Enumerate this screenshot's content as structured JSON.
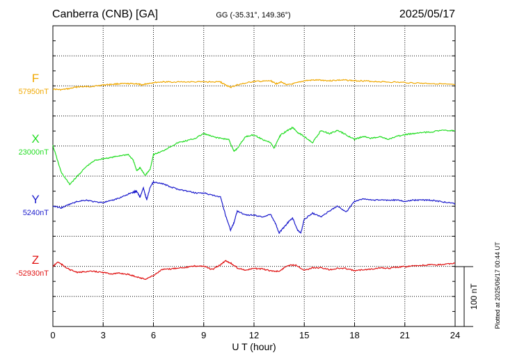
{
  "header": {
    "station": "Canberra (CNB)  [GA]",
    "coords": "GG (-35.31°, 149.36°)",
    "date": "2025/05/17"
  },
  "footer": {
    "plotted_note": "Plotted at 2025/06/17 00:44 UT"
  },
  "chart_data": {
    "type": "line",
    "xlabel": "U T (hour)",
    "xlim": [
      0,
      24
    ],
    "x_ticks": [
      0,
      3,
      6,
      9,
      12,
      15,
      18,
      21,
      24
    ],
    "scale_bar_label": "100 nT",
    "scale_bar_nT": 100,
    "grid": true,
    "series": [
      {
        "name": "F",
        "baseline_label": "57950nT",
        "baseline": 57950,
        "color": "#f0a800",
        "x": [
          0,
          0.5,
          1,
          1.5,
          2,
          2.5,
          3,
          3.5,
          4,
          4.5,
          5,
          5.3,
          5.6,
          6,
          6.5,
          7,
          8,
          9,
          10,
          10.3,
          10.6,
          11,
          11.5,
          12,
          12.5,
          13,
          13.3,
          13.6,
          14,
          14.5,
          15,
          15.5,
          16,
          16.5,
          17,
          17.5,
          18,
          18.5,
          19,
          20,
          21,
          22,
          23,
          24
        ],
        "values": [
          57943,
          57942,
          57944,
          57947,
          57947,
          57948,
          57950,
          57951,
          57952,
          57952,
          57952,
          57950,
          57952,
          57954,
          57955,
          57955,
          57955,
          57955,
          57955,
          57950,
          57946,
          57950,
          57953,
          57956,
          57956,
          57957,
          57952,
          57955,
          57950,
          57953,
          57957,
          57958,
          57958,
          57957,
          57958,
          57958,
          57957,
          57957,
          57956,
          57955,
          57954,
          57953,
          57952,
          57950
        ]
      },
      {
        "name": "X",
        "baseline_label": "23000nT",
        "baseline": 23000,
        "color": "#22dd22",
        "x": [
          0,
          0.5,
          1,
          1.5,
          2,
          2.5,
          3,
          3.5,
          4,
          4.5,
          4.8,
          5,
          5.2,
          5.5,
          5.8,
          6,
          6.5,
          7,
          7.5,
          8,
          8.5,
          9,
          9.5,
          10,
          10.5,
          10.8,
          11,
          11.5,
          12,
          12.5,
          13,
          13.2,
          13.4,
          13.6,
          14,
          14.3,
          14.6,
          15,
          15.5,
          16,
          16.5,
          17,
          17.5,
          18,
          18.5,
          19,
          19.5,
          20,
          20.5,
          21,
          21.5,
          22,
          22.5,
          23,
          23.5,
          24
        ],
        "values": [
          23000,
          22955,
          22935,
          22950,
          22965,
          22975,
          22978,
          22980,
          22983,
          22985,
          22975,
          22958,
          22963,
          22950,
          22960,
          22985,
          22990,
          22998,
          23005,
          23008,
          23012,
          23020,
          23015,
          23012,
          23010,
          22990,
          22995,
          23015,
          23018,
          23010,
          23005,
          22995,
          23008,
          23018,
          23025,
          23030,
          23022,
          23015,
          23005,
          23025,
          23020,
          23025,
          23018,
          23010,
          23015,
          23012,
          23015,
          23010,
          23015,
          23018,
          23020,
          23022,
          23022,
          23025,
          23025,
          23025
        ]
      },
      {
        "name": "Y",
        "baseline_label": "5240nT",
        "baseline": 5240,
        "color": "#1a1acc",
        "x": [
          0,
          0.5,
          1,
          1.5,
          2,
          2.5,
          3,
          3.5,
          4,
          4.5,
          4.8,
          5,
          5.2,
          5.4,
          5.6,
          5.8,
          6,
          6.5,
          7,
          7.5,
          8,
          8.5,
          9,
          9.5,
          10,
          10.3,
          10.6,
          10.8,
          11,
          11.5,
          12,
          12.5,
          13,
          13.3,
          13.5,
          13.8,
          14,
          14.3,
          14.6,
          14.8,
          15,
          15.5,
          16,
          16.5,
          17,
          17.5,
          18,
          18.5,
          19,
          19.5,
          20,
          20.5,
          21,
          21.5,
          22,
          22.5,
          23,
          23.5,
          24
        ],
        "values": [
          5240,
          5237,
          5243,
          5248,
          5250,
          5247,
          5246,
          5249,
          5254,
          5260,
          5263,
          5265,
          5255,
          5270,
          5250,
          5272,
          5280,
          5278,
          5272,
          5268,
          5265,
          5262,
          5262,
          5258,
          5255,
          5225,
          5200,
          5212,
          5232,
          5225,
          5225,
          5222,
          5226,
          5210,
          5195,
          5205,
          5212,
          5220,
          5200,
          5195,
          5218,
          5228,
          5222,
          5232,
          5240,
          5230,
          5248,
          5252,
          5250,
          5250,
          5250,
          5250,
          5248,
          5250,
          5250,
          5250,
          5248,
          5246,
          5244
        ]
      },
      {
        "name": "Z",
        "baseline_label": "-52930nT",
        "baseline": -52930,
        "color": "#e01010",
        "x": [
          0,
          0.3,
          0.6,
          1,
          1.5,
          2,
          2.5,
          3,
          3.5,
          4,
          4.5,
          5,
          5.5,
          6,
          6.5,
          7,
          7.5,
          8,
          8.5,
          9,
          9.5,
          10,
          10.3,
          10.6,
          11,
          11.5,
          12,
          12.5,
          13,
          13.5,
          14,
          14.5,
          15,
          15.5,
          16,
          16.5,
          17,
          17.5,
          18,
          18.5,
          19,
          19.5,
          20,
          20.5,
          21,
          21.5,
          22,
          22.5,
          23,
          23.5,
          24
        ],
        "values": [
          -52930,
          -52922,
          -52928,
          -52935,
          -52940,
          -52938,
          -52938,
          -52940,
          -52942,
          -52941,
          -52943,
          -52947,
          -52951,
          -52945,
          -52935,
          -52934,
          -52932,
          -52931,
          -52929,
          -52929,
          -52935,
          -52927,
          -52920,
          -52924,
          -52932,
          -52936,
          -52933,
          -52934,
          -52937,
          -52938,
          -52928,
          -52927,
          -52936,
          -52932,
          -52932,
          -52935,
          -52933,
          -52933,
          -52937,
          -52935,
          -52934,
          -52932,
          -52933,
          -52931,
          -52930,
          -52929,
          -52928,
          -52927,
          -52927,
          -52926,
          -52924
        ]
      }
    ]
  }
}
